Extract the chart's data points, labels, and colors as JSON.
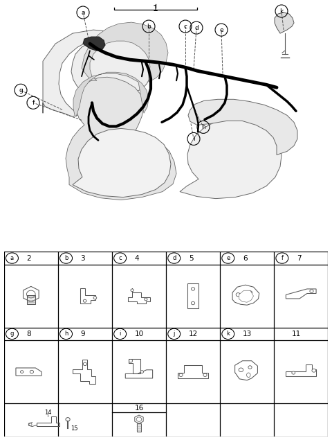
{
  "bg_color": "#ffffff",
  "label_1": "1",
  "table_row1": [
    {
      "letter": "a",
      "num": "2"
    },
    {
      "letter": "b",
      "num": "3"
    },
    {
      "letter": "c",
      "num": "4"
    },
    {
      "letter": "d",
      "num": "5"
    },
    {
      "letter": "e",
      "num": "6"
    },
    {
      "letter": "f",
      "num": "7"
    }
  ],
  "table_row2": [
    {
      "letter": "g",
      "num": "8"
    },
    {
      "letter": "h",
      "num": "9"
    },
    {
      "letter": "i",
      "num": "10"
    },
    {
      "letter": "j",
      "num": "12"
    },
    {
      "letter": "k",
      "num": "13"
    },
    {
      "letter": "",
      "num": "11"
    }
  ],
  "table_row3_num": "16",
  "table_row4_nums": [
    "14",
    "15"
  ],
  "line_color": "#444444",
  "grid_color": "#000000"
}
